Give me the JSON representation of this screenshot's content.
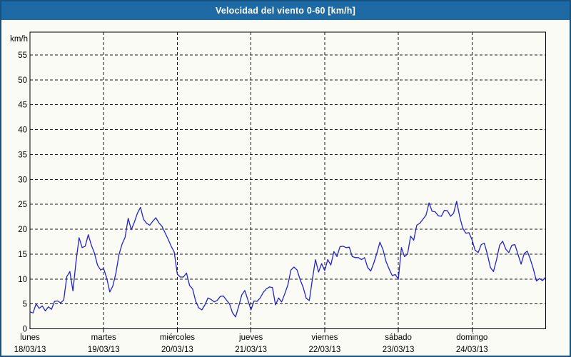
{
  "window": {
    "title": "Velocidad del viento 0-60 [km/h]"
  },
  "colors": {
    "titlebar": "#1e6aa5",
    "titlebar_text": "#ffffff",
    "outer_border": "#15527f",
    "background": "#fbfbf6",
    "plot_border": "#000000",
    "grid": "#1a1a1a",
    "line": "#2323c8",
    "text": "#000000"
  },
  "chart_data": {
    "type": "line",
    "title": "Velocidad del viento 0-60 [km/h]",
    "ylabel": "km/h",
    "xlabel": "",
    "ylim": [
      0,
      60
    ],
    "ytick_labels": [
      "0",
      "5",
      "10",
      "15",
      "20",
      "25",
      "30",
      "35",
      "40",
      "45",
      "50",
      "55"
    ],
    "grid": "dashed",
    "legend": "none",
    "sampling": "hourly",
    "x_axis": {
      "days": [
        {
          "name": "lunes",
          "date": "18/03/13"
        },
        {
          "name": "martes",
          "date": "19/03/13"
        },
        {
          "name": "miércoles",
          "date": "20/03/13"
        },
        {
          "name": "jueves",
          "date": "21/03/13"
        },
        {
          "name": "viernes",
          "date": "22/03/13"
        },
        {
          "name": "sábado",
          "date": "23/03/13"
        },
        {
          "name": "domingo",
          "date": "24/03/13"
        }
      ]
    },
    "series": [
      {
        "name": "Velocidad del viento",
        "unit": "km/h",
        "values": [
          3.4,
          3.2,
          5.0,
          4.1,
          4.6,
          3.6,
          4.4,
          3.9,
          5.5,
          5.6,
          5.2,
          5.8,
          10.5,
          11.5,
          7.6,
          13.5,
          18.3,
          16.3,
          16.6,
          18.9,
          16.8,
          15.2,
          12.8,
          11.8,
          12.1,
          10.2,
          7.4,
          8.6,
          11.2,
          14.9,
          17.0,
          18.4,
          22.2,
          19.9,
          21.4,
          23.2,
          24.4,
          22.0,
          21.2,
          20.8,
          21.6,
          22.3,
          21.3,
          20.6,
          19.3,
          18.0,
          16.6,
          15.4,
          11.0,
          10.4,
          10.4,
          11.2,
          8.7,
          8.0,
          5.5,
          4.2,
          3.8,
          4.8,
          6.2,
          5.9,
          5.4,
          5.7,
          6.5,
          6.6,
          5.8,
          5.0,
          3.2,
          2.4,
          4.5,
          6.8,
          7.7,
          5.8,
          3.8,
          5.6,
          5.5,
          6.2,
          7.3,
          8.0,
          8.4,
          8.3,
          4.8,
          6.2,
          5.4,
          7.0,
          8.8,
          11.8,
          12.4,
          11.8,
          9.9,
          8.3,
          6.1,
          5.7,
          10.0,
          13.9,
          11.4,
          13.1,
          11.7,
          13.9,
          12.8,
          15.5,
          14.5,
          16.5,
          16.6,
          16.3,
          16.4,
          14.5,
          14.3,
          14.3,
          13.9,
          14.3,
          12.3,
          11.6,
          13.2,
          15.2,
          17.4,
          15.9,
          13.5,
          12.0,
          10.7,
          10.9,
          10.0,
          16.3,
          14.5,
          15.0,
          18.6,
          17.8,
          20.8,
          21.2,
          22.0,
          22.8,
          25.3,
          23.6,
          23.5,
          22.7,
          22.6,
          23.8,
          23.7,
          22.6,
          23.2,
          25.6,
          22.5,
          20.2,
          19.2,
          19.3,
          17.9,
          15.8,
          15.3,
          16.9,
          17.2,
          15.0,
          12.3,
          11.5,
          13.9,
          16.8,
          17.6,
          16.0,
          15.3,
          16.8,
          16.9,
          14.9,
          13.0,
          15.1,
          15.6,
          14.0,
          12.0,
          9.6,
          10.1,
          9.7,
          10.4
        ]
      }
    ]
  }
}
